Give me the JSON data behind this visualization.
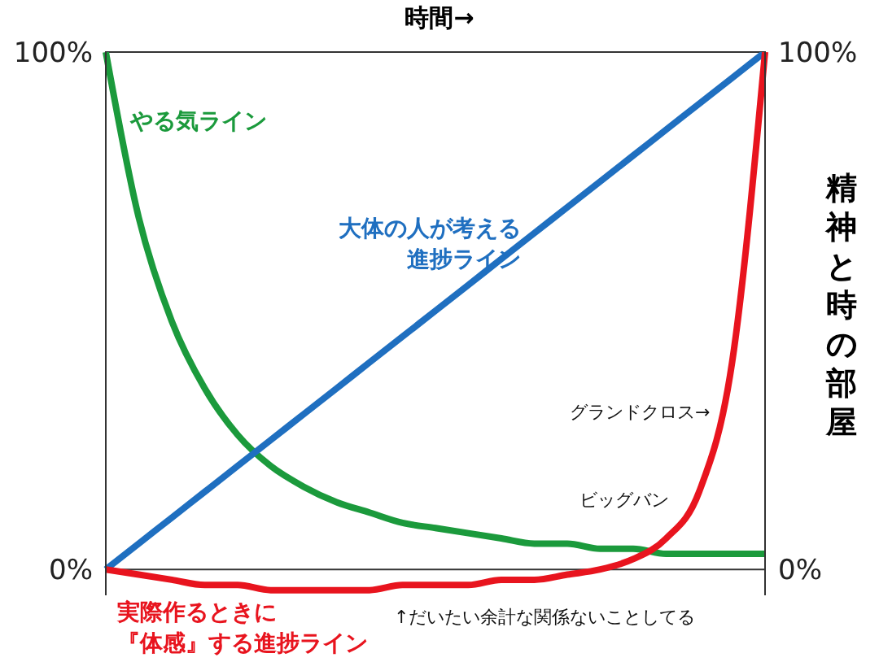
{
  "chart_data": {
    "type": "line",
    "xlabel": "時間→",
    "y2label": "精神と時の部屋",
    "categories": [
      null,
      null,
      null,
      null,
      null,
      null,
      null,
      null,
      null,
      null,
      null,
      null,
      null,
      null,
      null,
      null,
      null,
      null,
      null,
      null,
      null
    ],
    "series": [
      {
        "name": "やる気ライン",
        "color": "#1b9a3c",
        "values": [
          100,
          68,
          48,
          35,
          26,
          20,
          16,
          13,
          11,
          9,
          8,
          7,
          6,
          5,
          5,
          4,
          4,
          3,
          3,
          3,
          3
        ]
      },
      {
        "name": "大体の人が考える進捗ライン",
        "color": "#1f6fc0",
        "values": [
          0,
          5,
          10,
          15,
          20,
          25,
          30,
          35,
          40,
          45,
          50,
          55,
          60,
          65,
          70,
          75,
          80,
          85,
          90,
          95,
          100
        ]
      },
      {
        "name": "実際作るときに『体感』する進捗ライン",
        "color": "#e8141e",
        "values": [
          0,
          -1,
          -2,
          -3,
          -3,
          -4,
          -4,
          -4,
          -4,
          -3,
          -3,
          -3,
          -2,
          -2,
          -1,
          0,
          2,
          6,
          15,
          40,
          100
        ]
      }
    ],
    "ylim": [
      -5,
      100
    ],
    "yticks": [
      {
        "value": 0,
        "label": "0%"
      },
      {
        "value": 100,
        "label": "100%"
      }
    ],
    "y2lim": [
      -5,
      100
    ],
    "y2ticks": [
      {
        "value": 0,
        "label": "0%"
      },
      {
        "value": 100,
        "label": "100%"
      }
    ],
    "annotations": [
      "グランドクロス→",
      "ビッグバン",
      "↑だいたい余計な関係ないことしてる"
    ],
    "tick_labels": "y",
    "grid": false,
    "legend": false,
    "marker": "none",
    "line_style": "solid"
  }
}
